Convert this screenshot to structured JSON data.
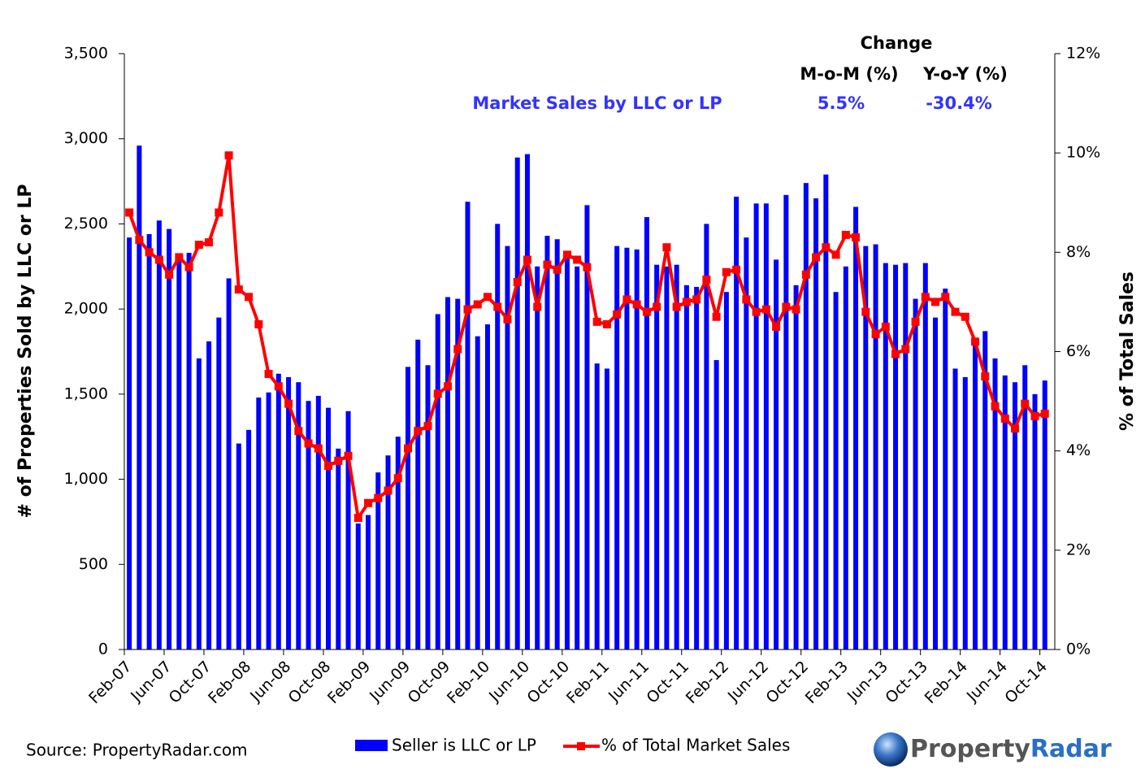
{
  "chart_data": {
    "type": "bar-line",
    "categories": [
      "Feb-07",
      null,
      null,
      null,
      "Jun-07",
      null,
      null,
      null,
      "Oct-07",
      null,
      null,
      null,
      "Feb-08",
      null,
      null,
      null,
      "Jun-08",
      null,
      null,
      null,
      "Oct-08",
      null,
      null,
      null,
      "Feb-09",
      null,
      null,
      null,
      "Jun-09",
      null,
      null,
      null,
      "Oct-09",
      null,
      null,
      null,
      "Feb-10",
      null,
      null,
      null,
      "Jun-10",
      null,
      null,
      null,
      "Oct-10",
      null,
      null,
      null,
      "Feb-11",
      null,
      null,
      null,
      "Jun-11",
      null,
      null,
      null,
      "Oct-11",
      null,
      null,
      null,
      "Feb-12",
      null,
      null,
      null,
      "Jun-12",
      null,
      null,
      null,
      "Oct-12",
      null,
      null,
      null,
      "Feb-13",
      null,
      null,
      null,
      "Jun-13",
      null,
      null,
      null,
      "Oct-13",
      null,
      null,
      null,
      "Feb-14",
      null,
      null,
      null,
      "Jun-14",
      null,
      null,
      null,
      "Oct-14"
    ],
    "series": [
      {
        "name": "Seller is LLC or LP",
        "color": "#0000ff",
        "values": [
          2420,
          2960,
          2440,
          2520,
          2470,
          2280,
          2330,
          1710,
          1810,
          1950,
          2180,
          1210,
          1290,
          1480,
          1510,
          1620,
          1600,
          1570,
          1460,
          1490,
          1420,
          1180,
          1400,
          740,
          790,
          1040,
          1140,
          1250,
          1660,
          1820,
          1670,
          1970,
          2070,
          2060,
          2630,
          1840,
          1910,
          2500,
          2370,
          2890,
          2910,
          2250,
          2430,
          2410,
          2330,
          2250,
          2610,
          1680,
          1650,
          2370,
          2360,
          2350,
          2540,
          2260,
          2250,
          2260,
          2140,
          2130,
          2500,
          1700,
          2100,
          2660,
          2420,
          2620,
          2620,
          2290,
          2670,
          2140,
          2740,
          2650,
          2790,
          2100,
          2250,
          2600,
          2370,
          2380,
          2270,
          2260,
          2270,
          2060,
          2270,
          1950,
          2120,
          1650,
          1600,
          1810,
          1870,
          1710,
          1610,
          1570,
          1670,
          1500,
          1580
        ]
      },
      {
        "name": "% of Total Market Sales",
        "color": "#ff0000",
        "axis": "y2",
        "values": [
          8.8,
          8.25,
          8.0,
          7.85,
          7.55,
          7.9,
          7.7,
          8.15,
          8.2,
          8.8,
          9.95,
          7.25,
          7.1,
          6.55,
          5.55,
          5.3,
          4.95,
          4.4,
          4.15,
          4.05,
          3.7,
          3.8,
          3.9,
          2.65,
          2.95,
          3.05,
          3.2,
          3.45,
          4.05,
          4.4,
          4.5,
          5.15,
          5.3,
          6.05,
          6.85,
          6.95,
          7.1,
          6.9,
          6.65,
          7.4,
          7.85,
          6.9,
          7.75,
          7.65,
          7.95,
          7.85,
          7.7,
          6.6,
          6.55,
          6.75,
          7.05,
          6.95,
          6.8,
          6.9,
          8.1,
          6.9,
          7.0,
          7.05,
          7.45,
          6.7,
          7.6,
          7.65,
          7.05,
          6.8,
          6.85,
          6.5,
          6.9,
          6.85,
          7.55,
          7.9,
          8.1,
          7.95,
          8.35,
          8.3,
          6.8,
          6.35,
          6.5,
          5.95,
          6.05,
          6.6,
          7.1,
          7.0,
          7.1,
          6.8,
          6.7,
          6.2,
          5.5,
          4.9,
          4.65,
          4.45,
          4.95,
          4.7,
          4.75
        ]
      }
    ],
    "ylabel": "# of Properties Sold by LLC or LP",
    "y2label": "% of Total Sales",
    "ylim": [
      0,
      3500
    ],
    "yticks": [
      0,
      500,
      {
        "value": 1000,
        "label": "1,000"
      },
      {
        "value": 1500,
        "label": "1,500"
      },
      {
        "value": 2000,
        "label": "2,000"
      },
      {
        "value": 2500,
        "label": "2,500"
      },
      {
        "value": 3000,
        "label": "3,000"
      },
      {
        "value": 3500,
        "label": "3,500"
      }
    ],
    "y2lim": [
      0,
      12
    ],
    "y2ticks": [
      {
        "value": 0,
        "label": "0%"
      },
      {
        "value": 2,
        "label": "2%"
      },
      {
        "value": 4,
        "label": "4%"
      },
      {
        "value": 6,
        "label": "6%"
      },
      {
        "value": 8,
        "label": "8%"
      },
      {
        "value": 10,
        "label": "10%"
      },
      {
        "value": 12,
        "label": "12%"
      }
    ],
    "annotation": {
      "heading": "Change",
      "columns": [
        "M-o-M (%)",
        "Y-o-Y (%)"
      ],
      "label": "Market Sales by LLC or LP",
      "values": [
        "5.5%",
        "-30.4%"
      ]
    },
    "source": "Source: PropertyRadar.com",
    "logo": [
      "Property",
      "Radar"
    ]
  }
}
